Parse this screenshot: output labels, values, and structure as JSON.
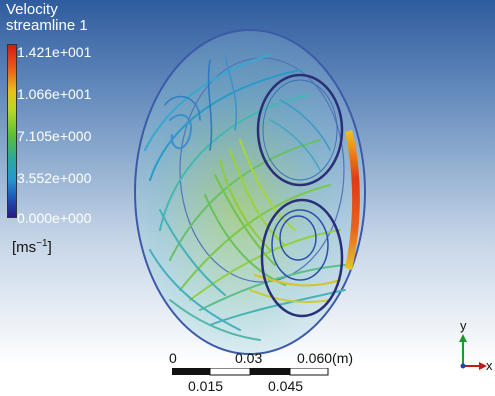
{
  "legend": {
    "title_line1": "Velocity",
    "title_line2": "streamline 1",
    "ticks": [
      "1.421e+001",
      "1.066e+001",
      "7.105e+000",
      "3.552e+000",
      "0.000e+000"
    ],
    "unit_base": "[ms",
    "unit_exp": "−1",
    "unit_close": "]"
  },
  "scale_bar": {
    "top_labels": [
      "0",
      "0.03",
      "0.060(m)"
    ],
    "bottom_labels": [
      "0.015",
      "0.045"
    ]
  },
  "axes": {
    "y_label": "y",
    "x_label": "x"
  },
  "colors": {
    "background_top": "#2f5c9e",
    "background_bottom": "#ffffff",
    "rim_max_velocity": "#d41a14"
  }
}
